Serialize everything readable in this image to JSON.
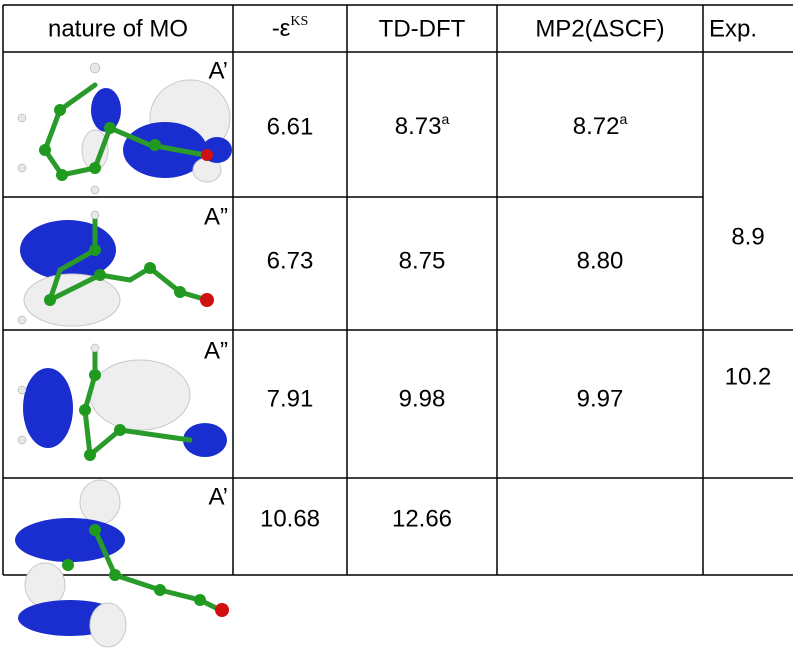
{
  "table": {
    "header": [
      "nature of MO",
      {
        "text": "-ε",
        "sup": "KS"
      },
      "TD-DFT",
      "MP2(ΔSCF)",
      "Exp."
    ],
    "rows": [
      {
        "symmetry": "A’",
        "eps_ks": "6.61",
        "td_dft": {
          "text": "8.73",
          "sup": "a"
        },
        "mp2": {
          "text": "8.72",
          "sup": "a"
        }
      },
      {
        "symmetry": "A”",
        "eps_ks": "6.73",
        "td_dft": "8.75",
        "mp2": "8.80"
      },
      {
        "symmetry": "A”",
        "eps_ks": "7.91",
        "td_dft": "9.98",
        "mp2": "9.97"
      },
      {
        "symmetry": "A’",
        "eps_ks": "10.68",
        "td_dft": "12.66"
      }
    ],
    "exp": [
      "8.9",
      "10.2"
    ]
  }
}
